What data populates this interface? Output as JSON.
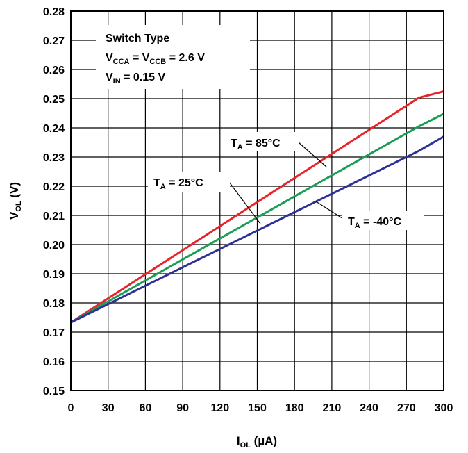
{
  "chart_data": {
    "type": "line",
    "x": [
      0,
      20,
      40,
      60,
      80,
      100,
      120,
      140,
      160,
      180,
      200,
      220,
      240,
      260,
      280,
      300
    ],
    "xlim": [
      0,
      300
    ],
    "ylim": [
      0.15,
      0.28
    ],
    "x_ticks": [
      "0",
      "30",
      "60",
      "90",
      "120",
      "150",
      "180",
      "210",
      "240",
      "270",
      "300"
    ],
    "y_ticks": [
      "0.15",
      "0.16",
      "0.17",
      "0.18",
      "0.19",
      "0.20",
      "0.21",
      "0.22",
      "0.23",
      "0.24",
      "0.25",
      "0.26",
      "0.27",
      "0.28"
    ],
    "xlabel": {
      "main": "I",
      "sub": "OL",
      "rest": " (µA)"
    },
    "ylabel": {
      "main": "V",
      "sub": "OL",
      "rest": " (V)"
    },
    "grid": true,
    "conditions": {
      "line1": "Switch Type",
      "line2": {
        "a": "V",
        "a_sub": "CCA",
        "b": " = V",
        "b_sub": "CCB",
        "c": " = 2.6 V"
      },
      "line3": {
        "a": "V",
        "a_sub": "IN",
        "c": " = 0.15 V"
      }
    },
    "series": [
      {
        "name": {
          "main": "T",
          "sub": "A",
          "rest": " = 85°C"
        },
        "color": "#e8232a",
        "values": [
          0.1733,
          0.1788,
          0.1843,
          0.1898,
          0.1953,
          0.2008,
          0.2063,
          0.2118,
          0.2173,
          0.2228,
          0.2283,
          0.2338,
          0.2393,
          0.2448,
          0.2503,
          0.2525
        ]
      },
      {
        "name": {
          "main": "T",
          "sub": "A",
          "rest": " = 25°C"
        },
        "color": "#1a9e55",
        "values": [
          0.1733,
          0.1781,
          0.1829,
          0.1877,
          0.1925,
          0.1973,
          0.2021,
          0.2069,
          0.2117,
          0.2165,
          0.2213,
          0.2261,
          0.2309,
          0.2357,
          0.2405,
          0.2448
        ]
      },
      {
        "name": {
          "main": "T",
          "sub": "A",
          "rest": " = -40°C"
        },
        "color": "#2e3192",
        "values": [
          0.1733,
          0.1775,
          0.1817,
          0.1859,
          0.1901,
          0.1943,
          0.1985,
          0.2027,
          0.2069,
          0.2111,
          0.2153,
          0.2195,
          0.2237,
          0.2279,
          0.2321,
          0.237
        ]
      }
    ]
  }
}
